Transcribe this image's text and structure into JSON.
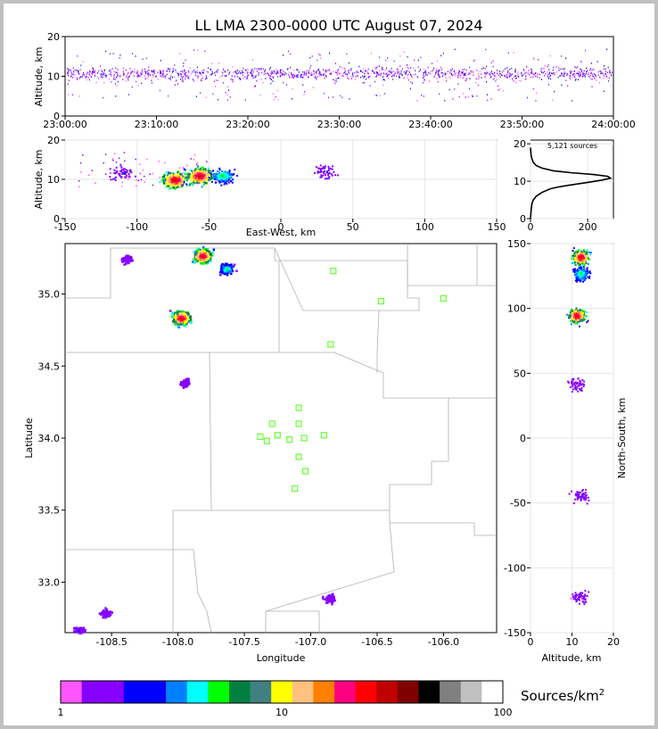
{
  "title": "LL LMA 2300-0000 UTC August 07, 2024",
  "colorbar_label_base": "Sources/km",
  "colorbar_label_sup": "2",
  "colorbar": {
    "ticks": [
      "1",
      "10",
      "100"
    ],
    "colors": [
      "#ff55ff",
      "#8800ff",
      "#8800ff",
      "#0000ff",
      "#0000ff",
      "#0080ff",
      "#00ffff",
      "#00ff00",
      "#008040",
      "#408080",
      "#ffff00",
      "#ffc080",
      "#ff8000",
      "#ff0080",
      "#ff0000",
      "#c00000",
      "#800000",
      "#000000",
      "#808080",
      "#c0c0c0",
      "#ffffff"
    ]
  },
  "chart_data": [
    {
      "type": "scatter",
      "name": "altitude-time",
      "xlabel": "",
      "ylabel": "Altitude, km",
      "xticks": [
        "23:00:00",
        "23:10:00",
        "23:20:00",
        "23:30:00",
        "23:40:00",
        "23:50:00",
        "24:00:00"
      ],
      "yticks": [
        "0",
        "10",
        "20"
      ],
      "ylim": [
        0,
        20
      ],
      "core_altitude_band_km": [
        7,
        14
      ]
    },
    {
      "type": "heatmap",
      "name": "altitude-eastwest",
      "xlabel": "East-West, km",
      "ylabel": "Altitude, km",
      "xlim": [
        -150,
        150
      ],
      "ylim": [
        0,
        20
      ],
      "xticks": [
        "-150",
        "-100",
        "-50",
        "0",
        "50",
        "100",
        "150"
      ],
      "yticks": [
        "0",
        "10",
        "20"
      ],
      "clusters": [
        {
          "x": -110,
          "alt": 12,
          "density": "low"
        },
        {
          "x": -74,
          "alt": 10,
          "density": "high"
        },
        {
          "x": -57,
          "alt": 11,
          "density": "high"
        },
        {
          "x": -41,
          "alt": 11,
          "density": "medium"
        },
        {
          "x": 30,
          "alt": 12,
          "density": "low"
        }
      ]
    },
    {
      "type": "line",
      "name": "source-histogram",
      "annotation": "5,121 sources",
      "xticks": [
        "0",
        "200"
      ],
      "yticks": [
        "0",
        "10",
        "20"
      ],
      "xlim": [
        0,
        290
      ],
      "ylim": [
        0,
        21
      ],
      "points": [
        [
          0,
          0
        ],
        [
          2,
          2
        ],
        [
          5,
          4
        ],
        [
          10,
          5
        ],
        [
          20,
          6
        ],
        [
          40,
          7
        ],
        [
          70,
          8
        ],
        [
          100,
          8.5
        ],
        [
          140,
          9
        ],
        [
          200,
          9.7
        ],
        [
          250,
          10.3
        ],
        [
          280,
          10.8
        ],
        [
          270,
          11.3
        ],
        [
          220,
          11.8
        ],
        [
          140,
          12.3
        ],
        [
          80,
          12.8
        ],
        [
          40,
          13.5
        ],
        [
          20,
          14.2
        ],
        [
          10,
          15
        ],
        [
          5,
          16
        ],
        [
          2,
          17
        ],
        [
          0,
          19
        ]
      ]
    },
    {
      "type": "heatmap",
      "name": "plan-view",
      "xlabel": "Longitude",
      "ylabel": "Latitude",
      "xlim": [
        -108.85,
        -105.6
      ],
      "ylim": [
        32.65,
        35.35
      ],
      "xticks": [
        "-108.5",
        "-108.0",
        "-107.5",
        "-107.0",
        "-106.5",
        "-106.0"
      ],
      "yticks": [
        "33.0",
        "33.5",
        "34.0",
        "34.5",
        "35.0"
      ],
      "clusters": [
        {
          "lon": -108.39,
          "lat": 35.25,
          "density": "low"
        },
        {
          "lon": -107.82,
          "lat": 35.27,
          "density": "high"
        },
        {
          "lon": -107.64,
          "lat": 35.18,
          "density": "medium"
        },
        {
          "lon": -107.98,
          "lat": 34.84,
          "density": "high"
        },
        {
          "lon": -107.95,
          "lat": 34.39,
          "density": "low"
        },
        {
          "lon": -106.86,
          "lat": 32.89,
          "density": "low"
        },
        {
          "lon": -108.75,
          "lat": 32.67,
          "density": "low"
        },
        {
          "lon": -108.55,
          "lat": 32.79,
          "density": "low"
        }
      ],
      "stations": [
        [
          -106.83,
          35.16
        ],
        [
          -106.47,
          34.95
        ],
        [
          -106.0,
          34.97
        ],
        [
          -106.85,
          34.65
        ],
        [
          -107.09,
          34.21
        ],
        [
          -107.29,
          34.1
        ],
        [
          -107.09,
          34.1
        ],
        [
          -107.38,
          34.01
        ],
        [
          -107.25,
          34.02
        ],
        [
          -107.33,
          33.98
        ],
        [
          -107.16,
          33.99
        ],
        [
          -107.05,
          34.0
        ],
        [
          -106.9,
          34.02
        ],
        [
          -107.09,
          33.87
        ],
        [
          -107.04,
          33.77
        ],
        [
          -107.12,
          33.65
        ]
      ]
    },
    {
      "type": "heatmap",
      "name": "northsouth-altitude",
      "xlabel": "Altitude, km",
      "ylabel": "North-South, km",
      "xlim": [
        0,
        20
      ],
      "ylim": [
        -150,
        150
      ],
      "xticks": [
        "0",
        "10",
        "20"
      ],
      "yticks": [
        "-150",
        "-100",
        "-50",
        "0",
        "50",
        "100",
        "150"
      ],
      "clusters": [
        {
          "alt": 12,
          "y": 140,
          "density": "high"
        },
        {
          "alt": 11,
          "y": 95,
          "density": "high"
        },
        {
          "alt": 12,
          "y": 127,
          "density": "medium"
        },
        {
          "alt": 11,
          "y": 42,
          "density": "low"
        },
        {
          "alt": 12,
          "y": -44,
          "density": "low"
        },
        {
          "alt": 12,
          "y": -122,
          "density": "low"
        }
      ]
    }
  ]
}
